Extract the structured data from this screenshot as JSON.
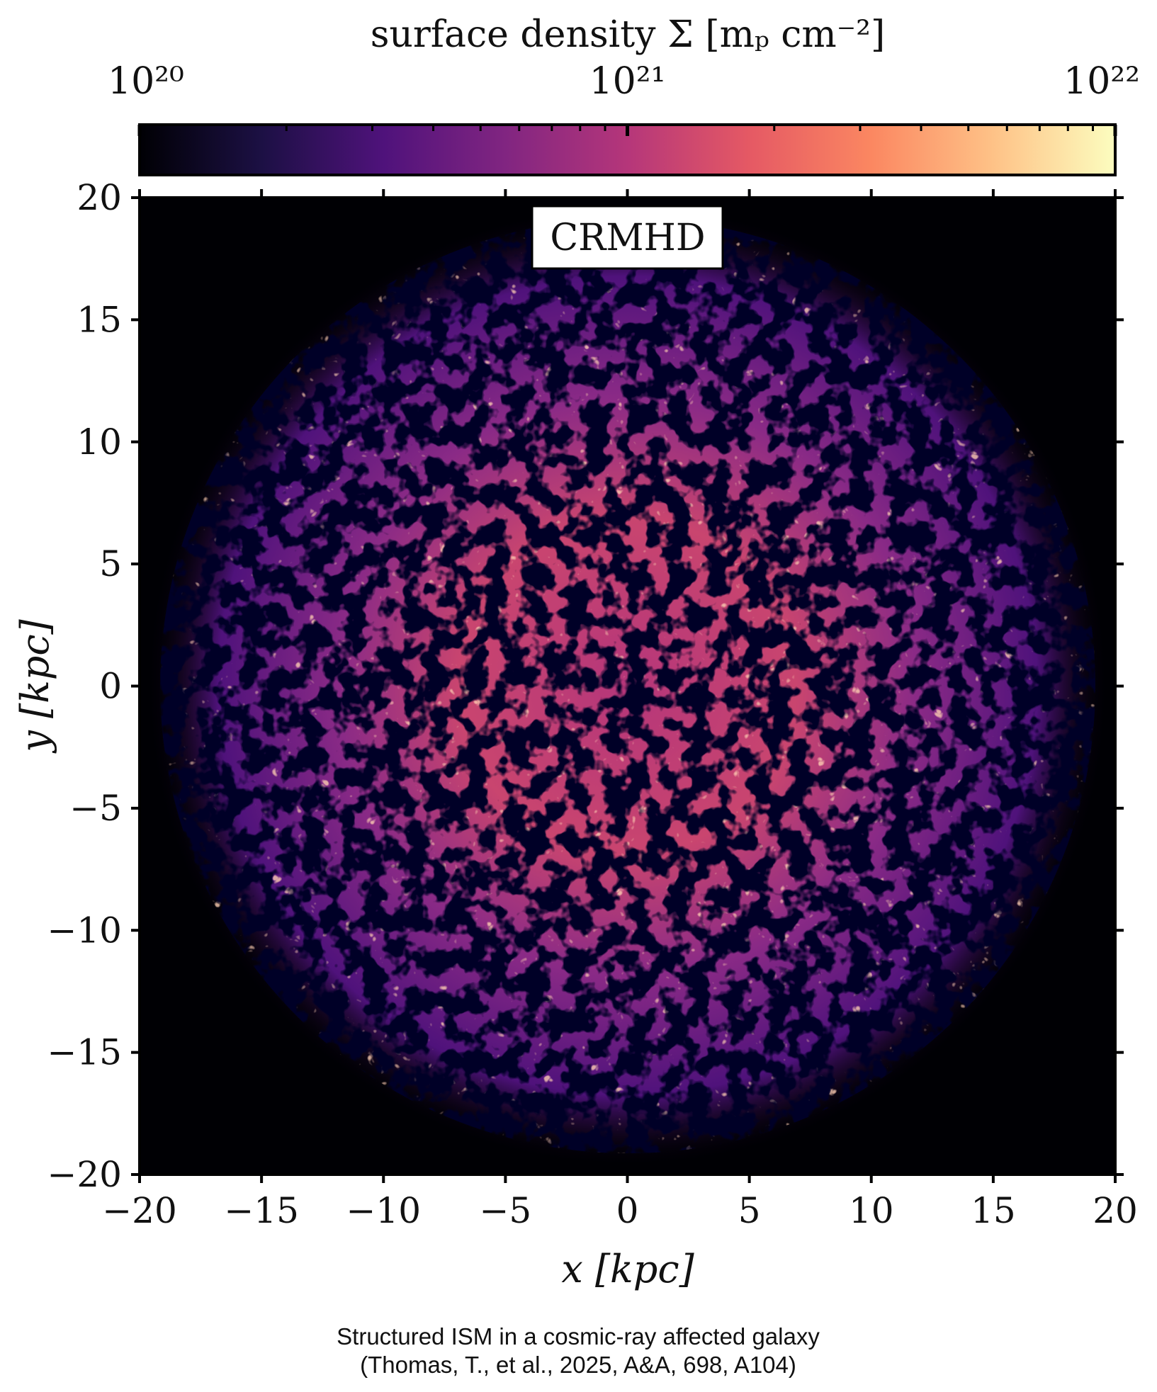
{
  "chart_data": {
    "type": "image",
    "annotation": "CRMHD",
    "xlabel": "x [kpc]",
    "ylabel": "y [kpc]",
    "xlim": [
      -20,
      20
    ],
    "ylim": [
      -20,
      20
    ],
    "xticks": [
      {
        "value": -20,
        "label": "−20"
      },
      {
        "value": -15,
        "label": "−15"
      },
      {
        "value": -10,
        "label": "−10"
      },
      {
        "value": -5,
        "label": "−5"
      },
      0,
      5,
      10,
      15,
      20
    ],
    "yticks": [
      {
        "value": -20,
        "label": "−20"
      },
      {
        "value": -15,
        "label": "−15"
      },
      {
        "value": -10,
        "label": "−10"
      },
      {
        "value": -5,
        "label": "−5"
      },
      0,
      5,
      10,
      15,
      20
    ],
    "colorbar": {
      "label": "surface density Σ [mₚ cm⁻²]",
      "colormap": "magma",
      "log": true,
      "lim": [
        1e+20,
        1e+22
      ],
      "ticks": [
        {
          "value": 1e+20,
          "label": "10²⁰"
        },
        {
          "value": 1e+21,
          "label": "10²¹"
        },
        {
          "value": 1e+22,
          "label": "10²²"
        }
      ],
      "minor_ticks": [
        2e+20,
        3e+20,
        4e+20,
        5e+20,
        6e+20,
        7e+20,
        8e+20,
        9e+20,
        2e+21,
        3e+21,
        4e+21,
        5e+21,
        6e+21,
        7e+21,
        8e+21,
        9e+21
      ]
    },
    "caption": [
      "Structured ISM in a cosmic-ray affected galaxy",
      "(Thomas, T., et al., 2025, A&A, 698, A104)"
    ]
  }
}
